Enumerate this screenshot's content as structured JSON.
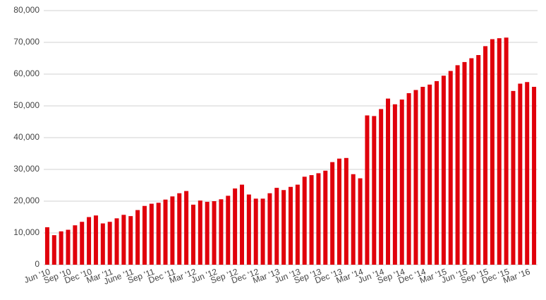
{
  "chart_data": {
    "type": "bar",
    "color": "#e0000b",
    "grid": true,
    "categories": [
      "Jun '10",
      null,
      null,
      "Sep '10",
      null,
      null,
      "Dec '10",
      null,
      null,
      "Mar '11",
      null,
      null,
      "June '11",
      null,
      null,
      "Sep '11",
      null,
      null,
      "Dec '11",
      null,
      null,
      "Mar '12",
      null,
      null,
      "Jun '12",
      null,
      null,
      "Sep '12",
      null,
      null,
      "Dec '12",
      null,
      null,
      "Mar '13",
      null,
      null,
      "Jun '13",
      null,
      null,
      "Sep '13",
      null,
      null,
      "Dec '13",
      null,
      null,
      "Mar '14",
      null,
      null,
      "Jun '14",
      null,
      null,
      "Sep '14",
      null,
      null,
      "Dec '14",
      null,
      null,
      "Mar '15",
      null,
      null,
      "Jun '15",
      null,
      null,
      "Sep '15",
      null,
      null,
      "Dec '15",
      null,
      null,
      "Mar '16",
      null
    ],
    "values": [
      11800,
      9300,
      10500,
      11000,
      12400,
      13500,
      15000,
      15500,
      13000,
      13500,
      14600,
      15700,
      15300,
      17200,
      18500,
      19200,
      19500,
      20500,
      21500,
      22500,
      23200,
      18900,
      20200,
      19800,
      20000,
      20600,
      21700,
      24000,
      25200,
      22100,
      20800,
      20800,
      22500,
      24200,
      23500,
      24500,
      25200,
      27700,
      28200,
      28800,
      29600,
      32300,
      33400,
      33600,
      28500,
      27200,
      47000,
      46800,
      49000,
      52300,
      50500,
      52000,
      54000,
      55000,
      56000,
      56700,
      57800,
      59500,
      61000,
      62800,
      63800,
      65000,
      66000,
      68800,
      71000,
      71300,
      71500,
      54700,
      57000,
      57500,
      56000
    ],
    "ylim": [
      0,
      80000
    ],
    "yticks": [
      0,
      {
        "value": 10000,
        "label": "10,000"
      },
      {
        "value": 20000,
        "label": "20,000"
      },
      {
        "value": 30000,
        "label": "30,000"
      },
      {
        "value": 40000,
        "label": "40,000"
      },
      {
        "value": 50000,
        "label": "50,000"
      },
      {
        "value": 60000,
        "label": "60,000"
      },
      {
        "value": 70000,
        "label": "70,000"
      },
      {
        "value": 80000,
        "label": "80,000"
      }
    ]
  }
}
